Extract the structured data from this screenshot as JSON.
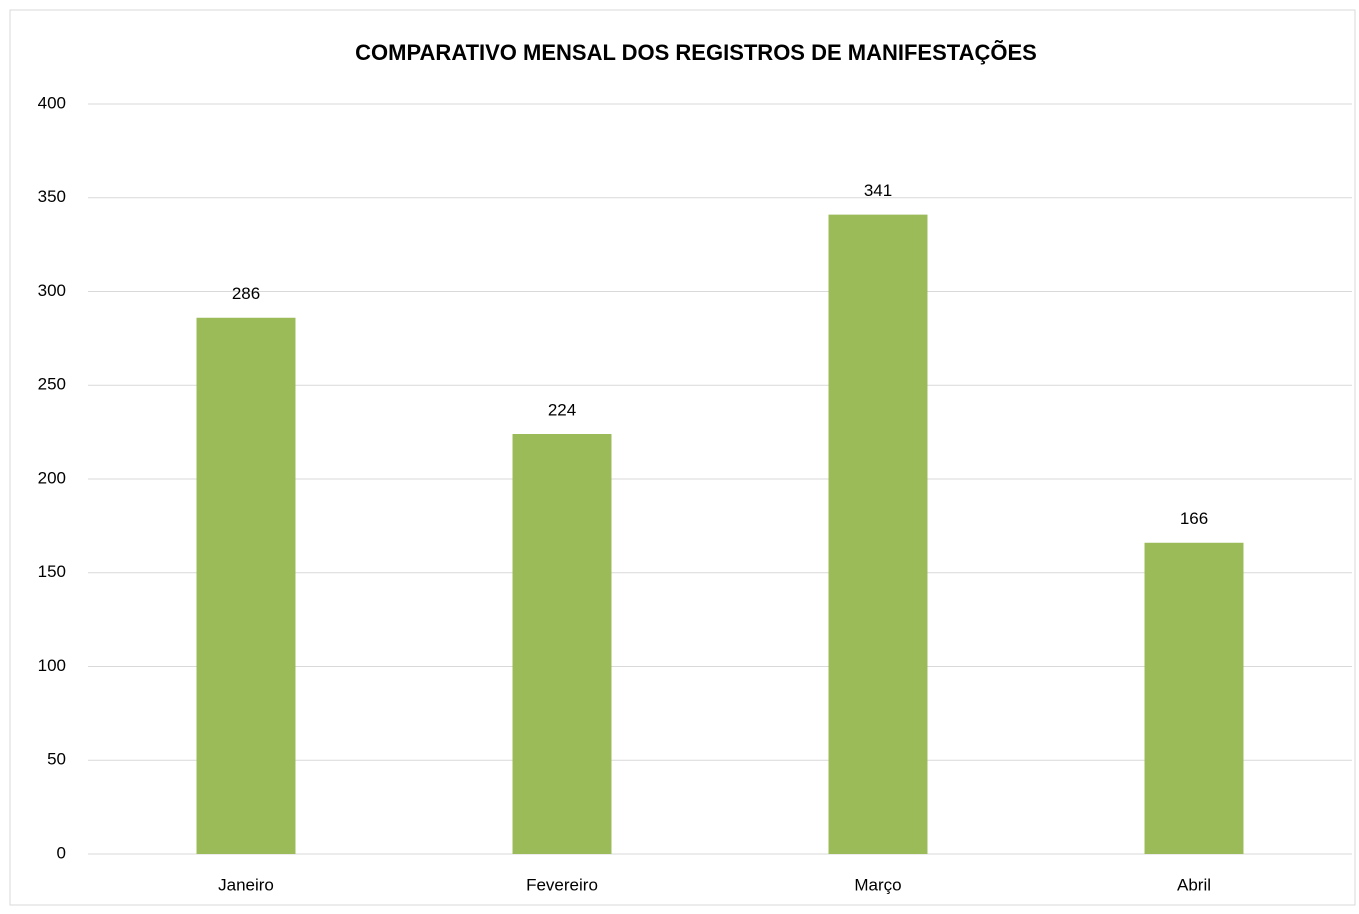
{
  "chart_data": {
    "type": "bar",
    "title": "COMPARATIVO MENSAL DOS REGISTROS DE MANIFESTAÇÕES",
    "categories": [
      "Janeiro",
      "Fevereiro",
      "Março",
      "Abril"
    ],
    "values": [
      286,
      224,
      341,
      166
    ],
    "color": "#9bbb59",
    "ylim": [
      0,
      400
    ],
    "yticks": [
      0,
      50,
      100,
      150,
      200,
      250,
      300,
      350,
      400
    ],
    "grid": true
  }
}
